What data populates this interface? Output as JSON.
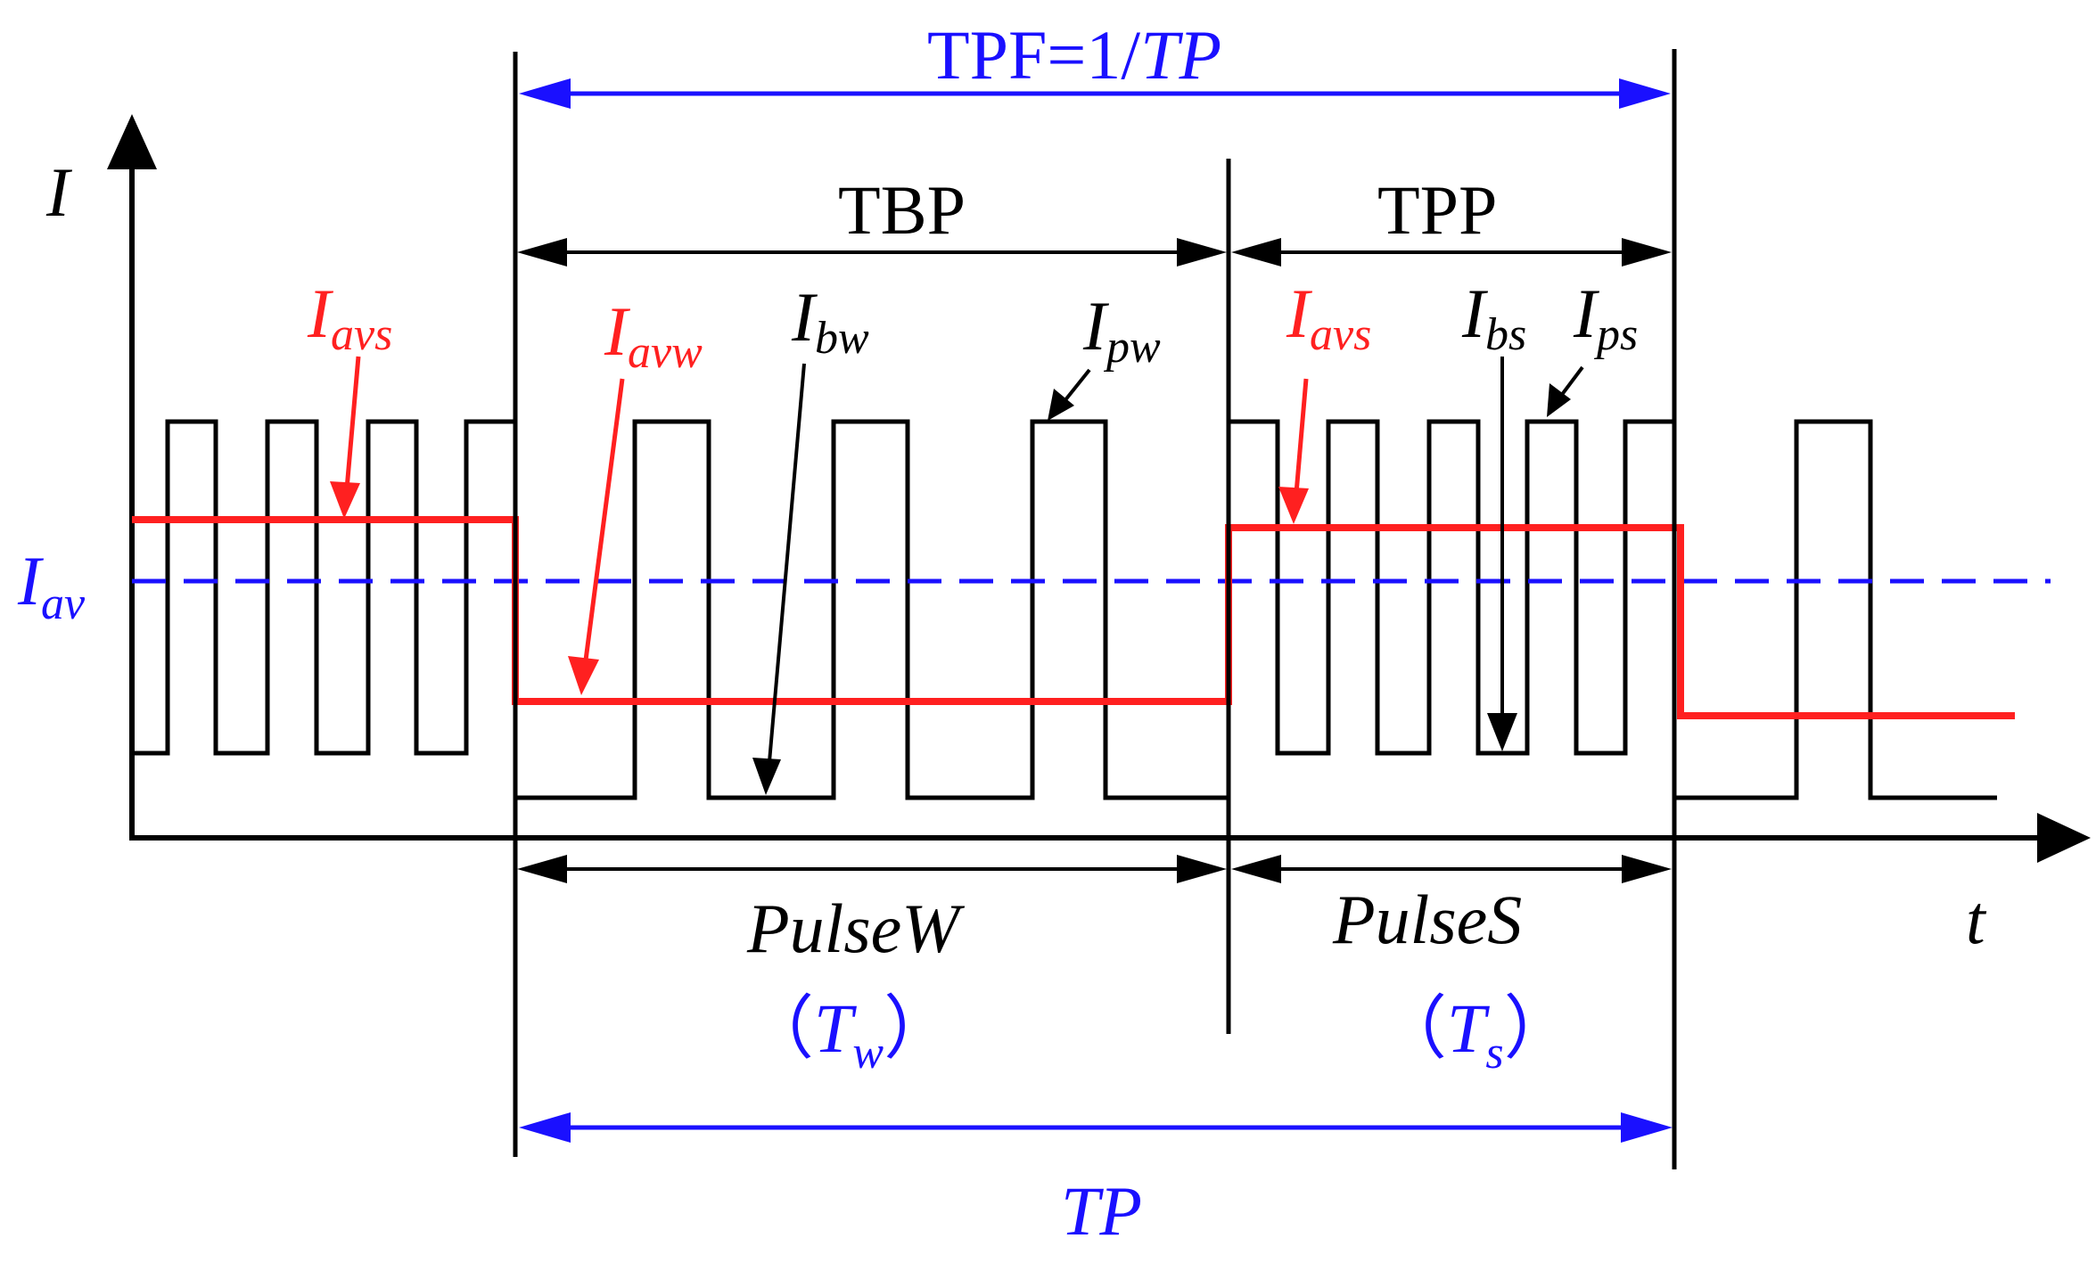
{
  "colors": {
    "black": "#000000",
    "red": "#ff2020",
    "blue": "#1a10ff"
  },
  "labels": {
    "y_axis": "I",
    "x_axis": "t",
    "i_av_main": "I",
    "i_av_sub": "av",
    "tpf_prefix": "TPF=1/",
    "tpf_tp": "TP",
    "tbp": "TBP",
    "tpp": "TPP",
    "i_avs_left_main": "I",
    "i_avs_left_sub": "avs",
    "i_avw_main": "I",
    "i_avw_sub": "avw",
    "i_bw_main": "I",
    "i_bw_sub": "bw",
    "i_pw_main": "I",
    "i_pw_sub": "pw",
    "i_avs_right_main": "I",
    "i_avs_right_sub": "avs",
    "i_bs_main": "I",
    "i_bs_sub": "bs",
    "i_ps_main": "I",
    "i_ps_sub": "ps",
    "pulse_w": "PulseW",
    "pulse_s": "PulseS",
    "tw_open": "（",
    "tw_main": "T",
    "tw_sub": "w",
    "tw_close": "）",
    "ts_open": "（",
    "ts_main": "T",
    "ts_sub": "s",
    "ts_close": "）",
    "tp": "TP"
  }
}
